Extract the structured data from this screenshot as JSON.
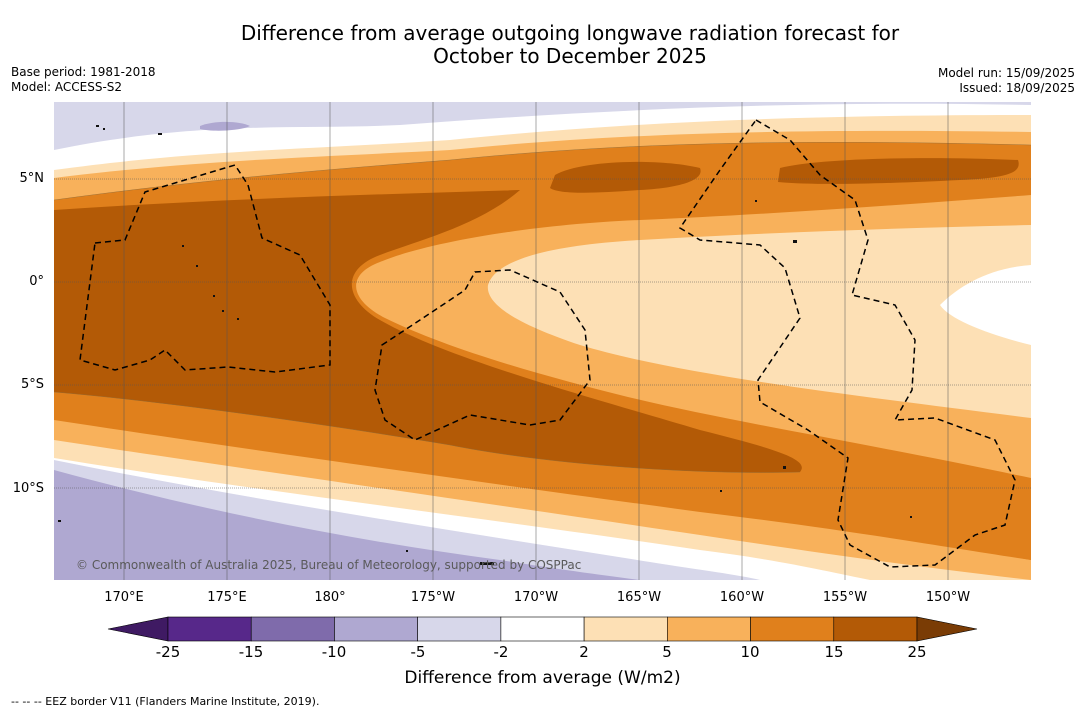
{
  "title_line1": "Difference from average outgoing longwave radiation forecast for",
  "title_line2": "October to December 2025",
  "meta_left": [
    "Base period: 1981-2018",
    "Model: ACCESS-S2"
  ],
  "meta_right": [
    "Model run: 15/09/2025",
    "Issued: 18/09/2025"
  ],
  "lat_labels": [
    "5°N",
    "0°",
    "5°S",
    "10°S"
  ],
  "lon_labels": [
    "170°E",
    "175°E",
    "180°",
    "175°W",
    "170°W",
    "165°W",
    "160°W",
    "155°W",
    "150°W"
  ],
  "credit": "© Commonwealth of Australia 2025, Bureau of Meteorology, supported by COSPPac",
  "colorbar": {
    "ticks": [
      "-25",
      "-15",
      "-10",
      "-5",
      "-2",
      "2",
      "5",
      "10",
      "15",
      "25"
    ],
    "colors": [
      "#3f1a63",
      "#57288a",
      "#7f6bab",
      "#afa8d1",
      "#d7d7ea",
      "#ffffff",
      "#fde0b5",
      "#f8b15b",
      "#e0801c",
      "#b35a06",
      "#7a3c05"
    ],
    "label": "Difference from average (W/m2)"
  },
  "legend_line": "--  --  -- EEZ border V11 (Flanders Marine Institute, 2019)."
}
